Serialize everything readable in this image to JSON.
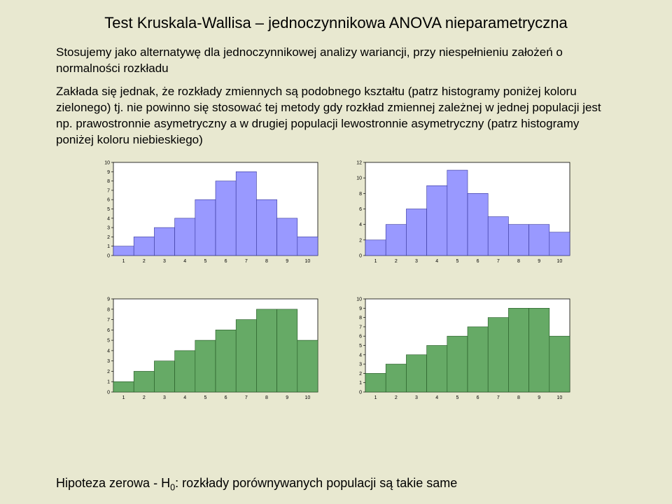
{
  "title": "Test Kruskala-Wallisa – jednoczynnikowa ANOVA nieparametryczna",
  "p1": "Stosujemy jako alternatywę dla jednoczynnikowej analizy wariancji, przy niespełnieniu założeń o normalności rozkładu",
  "p2": "Zakłada się jednak, że rozkłady zmiennych są podobnego kształtu (patrz histogramy poniżej koloru zielonego) tj. nie powinno się stosować tej metody gdy rozkład zmiennej zależnej w jednej populacji jest np. prawostronnie asymetryczny a w drugiej populacji lewostronnie asymetryczny (patrz histogramy poniżej koloru niebieskiego)",
  "footer_pre": "Hipoteza zerowa - H",
  "footer_sub": "0",
  "footer_post": ": rozkłady porównywanych populacji są takie same",
  "charts": [
    {
      "type": "bar",
      "values": [
        1,
        2,
        3,
        4,
        6,
        8,
        9,
        6,
        4,
        2
      ],
      "categories": [
        "1",
        "2",
        "3",
        "4",
        "5",
        "6",
        "7",
        "8",
        "9",
        "10"
      ],
      "y_max": 10,
      "y_step": 1,
      "fill": "#9999ff",
      "stroke": "#333399",
      "bg": "#ffffff",
      "axis_color": "#000000",
      "text_color": "#000000",
      "font_size": 7
    },
    {
      "type": "bar",
      "values": [
        2,
        4,
        6,
        9,
        11,
        8,
        5,
        4,
        4,
        3
      ],
      "categories": [
        "1",
        "2",
        "3",
        "4",
        "5",
        "6",
        "7",
        "8",
        "9",
        "10"
      ],
      "y_max": 12,
      "y_step": 2,
      "fill": "#9999ff",
      "stroke": "#333399",
      "bg": "#ffffff",
      "axis_color": "#000000",
      "text_color": "#000000",
      "font_size": 7
    },
    {
      "type": "bar",
      "values": [
        1,
        2,
        3,
        4,
        5,
        6,
        7,
        8,
        8,
        5
      ],
      "categories": [
        "1",
        "2",
        "3",
        "4",
        "5",
        "6",
        "7",
        "8",
        "9",
        "10"
      ],
      "y_max": 9,
      "y_step": 1,
      "fill": "#66aa66",
      "stroke": "#225522",
      "bg": "#ffffff",
      "axis_color": "#000000",
      "text_color": "#000000",
      "font_size": 7
    },
    {
      "type": "bar",
      "values": [
        2,
        3,
        4,
        5,
        6,
        7,
        8,
        9,
        9,
        6
      ],
      "categories": [
        "1",
        "2",
        "3",
        "4",
        "5",
        "6",
        "7",
        "8",
        "9",
        "10"
      ],
      "y_max": 10,
      "y_step": 1,
      "fill": "#66aa66",
      "stroke": "#225522",
      "bg": "#ffffff",
      "axis_color": "#000000",
      "text_color": "#000000",
      "font_size": 7
    }
  ]
}
